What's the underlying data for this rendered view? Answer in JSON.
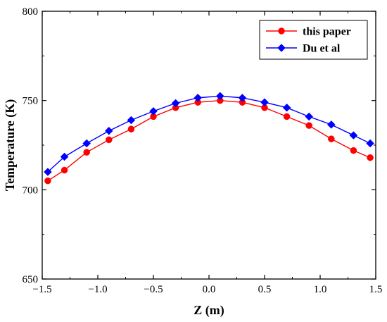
{
  "chart_data": {
    "type": "line",
    "xlabel": "Z (m)",
    "ylabel": "Temperature (K)",
    "xlim": [
      -1.5,
      1.5
    ],
    "ylim": [
      650,
      800
    ],
    "xticks": [
      -1.5,
      -1.0,
      -0.5,
      0.0,
      0.5,
      1.0,
      1.5
    ],
    "xtick_labels": [
      "−1.5",
      "−1.0",
      "−0.5",
      "0.0",
      "0.5",
      "1.0",
      "1.5"
    ],
    "yticks": [
      650,
      700,
      750,
      800
    ],
    "ytick_labels": [
      "650",
      "700",
      "750",
      "800"
    ],
    "grid": false,
    "legend_position": "top-right",
    "series": [
      {
        "name": "this paper",
        "color": "#ff0000",
        "marker": "circle",
        "x": [
          -1.45,
          -1.3,
          -1.1,
          -0.9,
          -0.7,
          -0.5,
          -0.3,
          -0.1,
          0.1,
          0.3,
          0.5,
          0.7,
          0.9,
          1.1,
          1.3,
          1.45
        ],
        "y": [
          705,
          711,
          721,
          728,
          734,
          741,
          746,
          749,
          750,
          749,
          746,
          741,
          736,
          728.5,
          722,
          718
        ]
      },
      {
        "name": "Du et al",
        "color": "#0000ff",
        "marker": "diamond",
        "x": [
          -1.45,
          -1.3,
          -1.1,
          -0.9,
          -0.7,
          -0.5,
          -0.3,
          -0.1,
          0.1,
          0.3,
          0.5,
          0.7,
          0.9,
          1.1,
          1.3,
          1.45
        ],
        "y": [
          710,
          718.5,
          726,
          733,
          739,
          744,
          748.5,
          751.5,
          752.5,
          751.5,
          749,
          746,
          741,
          736.5,
          730.5,
          726
        ]
      }
    ]
  }
}
